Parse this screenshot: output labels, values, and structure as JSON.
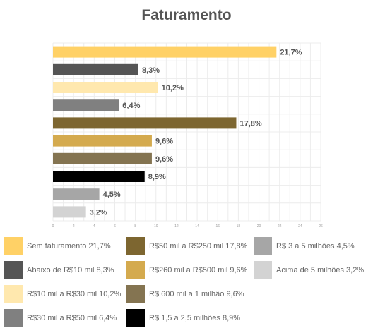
{
  "chart_data": {
    "type": "bar",
    "orientation": "horizontal",
    "title": "Faturamento",
    "xlim": [
      0,
      26
    ],
    "x_ticks": [
      "0",
      "2",
      "4",
      "6",
      "8",
      "10",
      "12",
      "14",
      "16",
      "18",
      "20",
      "22",
      "24",
      "26"
    ],
    "grid": true,
    "legend_position": "bottom",
    "categories": [
      "Sem faturamento",
      "Abaixo de R$10 mil",
      "R$10 mil a R$30 mil",
      "R$30 mil a R$50 mil",
      "R$50 mil a R$250 mil",
      "R$260 mil a R$500 mil",
      "R$ 600 mil a 1 milhão",
      "R$ 1,5 a 2,5 milhões",
      "R$ 3 a 5 milhões",
      "Acima de 5 milhões"
    ],
    "values": [
      21.7,
      8.3,
      10.2,
      6.4,
      17.8,
      9.6,
      9.6,
      8.9,
      4.5,
      3.2
    ],
    "value_labels": [
      "21,7%",
      "8,3%",
      "10,2%",
      "6,4%",
      "17,8%",
      "9,6%",
      "9,6%",
      "8,9%",
      "4,5%",
      "3,2%"
    ],
    "colors": [
      "#FFD166",
      "#555555",
      "#FFE8AE",
      "#808080",
      "#7D6630",
      "#D4AA4E",
      "#847451",
      "#000000",
      "#A6A6A6",
      "#D3D3D3"
    ]
  },
  "legend": [
    "Sem faturamento 21,7%",
    "Abaixo de R$10 mil 8,3%",
    "R$10 mil a R$30 mil 10,2%",
    "R$30 mil a R$50 mil 6,4%",
    "R$50 mil a R$250 mil 17,8%",
    "R$260 mil a R$500 mil 9,6%",
    "R$ 600 mil a 1 milhão 9,6%",
    "R$ 1,5 a 2,5 milhões 8,9%",
    "R$ 3 a 5 milhões 4,5%",
    "Acima de 5 milhões 3,2%"
  ]
}
